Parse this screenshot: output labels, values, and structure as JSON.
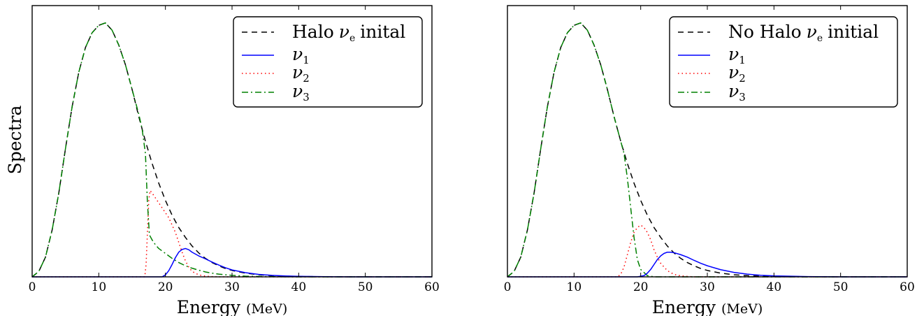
{
  "ylabel": "Spectra",
  "xlabel": {
    "main": "Energy",
    "unit": "(MeV)"
  },
  "legend_symbols": {
    "nu": "ν",
    "e": "e",
    "s1": "1",
    "s2": "2",
    "s3": "3"
  },
  "colors": {
    "initial": "#000000",
    "nu1": "#0000ff",
    "nu2": "#ff0000",
    "nu3": "#008000",
    "frame": "#000000"
  },
  "chart_data": [
    {
      "type": "line",
      "xlabel": "Energy (MeV)",
      "ylabel": "Spectra",
      "xlim": [
        0,
        60
      ],
      "ylim": [
        0,
        1.1
      ],
      "xticks": [
        "0",
        "10",
        "20",
        "30",
        "40",
        "50",
        "60"
      ],
      "yticks": [],
      "grid": false,
      "legend_position": "top-right",
      "legend_text": "Halo",
      "legend_tail": "inital",
      "series": [
        {
          "key": "initial",
          "style": "dashed",
          "color": "#000000",
          "x": [
            0,
            1,
            2,
            3,
            4,
            5,
            6,
            7,
            8,
            9,
            10,
            11,
            12,
            13,
            14,
            15,
            16,
            17,
            18,
            19,
            20,
            21,
            22,
            23,
            24,
            25,
            26,
            27,
            28,
            29,
            30,
            32,
            34,
            36,
            38,
            40,
            45,
            50,
            55,
            60
          ],
          "y": [
            0,
            0.022,
            0.08,
            0.19,
            0.34,
            0.52,
            0.69,
            0.83,
            0.93,
            0.99,
            1.02,
            1.03,
            1.0,
            0.94,
            0.86,
            0.76,
            0.65,
            0.55,
            0.46,
            0.38,
            0.31,
            0.25,
            0.2,
            0.16,
            0.125,
            0.097,
            0.075,
            0.058,
            0.045,
            0.034,
            0.026,
            0.015,
            0.0085,
            0.0048,
            0.0027,
            0.0015,
            0.0003,
            0,
            0,
            0
          ]
        },
        {
          "key": "nu1",
          "style": "solid",
          "color": "#0000ff",
          "x": [
            0,
            19.5,
            20,
            20.5,
            21,
            21.5,
            22,
            22.5,
            23,
            23.5,
            24,
            25,
            26,
            27,
            28,
            29,
            30,
            32,
            34,
            36,
            38,
            40,
            45,
            50,
            60
          ],
          "y": [
            0,
            0,
            0.008,
            0.025,
            0.05,
            0.078,
            0.1,
            0.111,
            0.115,
            0.11,
            0.1,
            0.085,
            0.073,
            0.06,
            0.048,
            0.037,
            0.028,
            0.017,
            0.01,
            0.006,
            0.0035,
            0.002,
            0.0004,
            0,
            0
          ]
        },
        {
          "key": "nu2",
          "style": "dotted",
          "color": "#ff0000",
          "x": [
            0,
            16.9,
            17.1,
            17.3,
            17.5,
            17.7,
            18,
            18.5,
            19,
            19.5,
            20,
            20.5,
            21,
            21.5,
            22,
            22.5,
            23,
            23.5,
            24,
            25,
            26,
            27,
            28,
            30,
            60
          ],
          "y": [
            0,
            0,
            0.05,
            0.18,
            0.31,
            0.35,
            0.34,
            0.32,
            0.3,
            0.28,
            0.26,
            0.24,
            0.21,
            0.18,
            0.14,
            0.1,
            0.065,
            0.04,
            0.022,
            0.008,
            0.003,
            0.001,
            0,
            0,
            0
          ]
        },
        {
          "key": "nu3",
          "style": "dashdot",
          "color": "#008000",
          "x": [
            0,
            1,
            2,
            3,
            4,
            5,
            6,
            7,
            8,
            9,
            10,
            11,
            12,
            13,
            14,
            15,
            16,
            16.5,
            17,
            17.3,
            17.6,
            18,
            18.5,
            19,
            20,
            21,
            22,
            23,
            24,
            25,
            26,
            27,
            28,
            30,
            32,
            35,
            40,
            60
          ],
          "y": [
            0,
            0.022,
            0.08,
            0.19,
            0.34,
            0.52,
            0.69,
            0.83,
            0.93,
            0.99,
            1.02,
            1.03,
            1.0,
            0.94,
            0.86,
            0.76,
            0.66,
            0.6,
            0.5,
            0.3,
            0.17,
            0.15,
            0.13,
            0.115,
            0.095,
            0.075,
            0.058,
            0.045,
            0.035,
            0.027,
            0.02,
            0.015,
            0.011,
            0.006,
            0.003,
            0.001,
            0,
            0
          ]
        }
      ]
    },
    {
      "type": "line",
      "xlabel": "Energy (MeV)",
      "ylabel": "",
      "xlim": [
        0,
        60
      ],
      "ylim": [
        0,
        1.1
      ],
      "xticks": [
        "0",
        "10",
        "20",
        "30",
        "40",
        "50",
        "60"
      ],
      "yticks": [],
      "grid": false,
      "legend_position": "top-right",
      "legend_text": "No Halo",
      "legend_tail": "initial",
      "series": [
        {
          "key": "initial",
          "style": "dashed",
          "color": "#000000",
          "x": [
            0,
            1,
            2,
            3,
            4,
            5,
            6,
            7,
            8,
            9,
            10,
            11,
            12,
            13,
            14,
            15,
            16,
            17,
            18,
            19,
            20,
            21,
            22,
            23,
            24,
            25,
            26,
            27,
            28,
            29,
            30,
            32,
            34,
            36,
            38,
            40,
            45,
            50,
            55,
            60
          ],
          "y": [
            0,
            0.022,
            0.08,
            0.19,
            0.34,
            0.52,
            0.69,
            0.83,
            0.93,
            0.99,
            1.02,
            1.03,
            1.0,
            0.94,
            0.86,
            0.76,
            0.65,
            0.55,
            0.46,
            0.38,
            0.31,
            0.25,
            0.2,
            0.16,
            0.125,
            0.097,
            0.075,
            0.058,
            0.045,
            0.034,
            0.026,
            0.015,
            0.0085,
            0.0048,
            0.0027,
            0.0015,
            0.0003,
            0,
            0,
            0
          ]
        },
        {
          "key": "nu1",
          "style": "solid",
          "color": "#0000ff",
          "x": [
            0,
            19.5,
            20.5,
            21,
            21.5,
            22,
            22.5,
            23,
            23.5,
            24,
            24.5,
            25,
            26,
            27,
            28,
            29,
            30,
            32,
            34,
            36,
            38,
            40,
            45,
            50,
            60
          ],
          "y": [
            0,
            0,
            0.005,
            0.015,
            0.03,
            0.05,
            0.07,
            0.085,
            0.095,
            0.1,
            0.1,
            0.098,
            0.09,
            0.08,
            0.067,
            0.055,
            0.045,
            0.029,
            0.018,
            0.011,
            0.0065,
            0.004,
            0.001,
            0,
            0
          ]
        },
        {
          "key": "nu2",
          "style": "dotted",
          "color": "#ff0000",
          "x": [
            0,
            16.5,
            17,
            17.5,
            18,
            18.5,
            19,
            19.5,
            20,
            20.5,
            21,
            21.5,
            22,
            22.5,
            23,
            24,
            25,
            26,
            28,
            60
          ],
          "y": [
            0,
            0,
            0.01,
            0.04,
            0.09,
            0.14,
            0.18,
            0.2,
            0.21,
            0.2,
            0.18,
            0.15,
            0.11,
            0.08,
            0.055,
            0.025,
            0.01,
            0.004,
            0,
            0
          ]
        },
        {
          "key": "nu3",
          "style": "dashdot",
          "color": "#008000",
          "x": [
            0,
            1,
            2,
            3,
            4,
            5,
            6,
            7,
            8,
            9,
            10,
            11,
            12,
            13,
            14,
            15,
            16,
            17,
            17.5,
            18,
            18.5,
            19,
            19.5,
            20,
            21,
            22,
            60
          ],
          "y": [
            0,
            0.022,
            0.08,
            0.19,
            0.34,
            0.52,
            0.69,
            0.83,
            0.93,
            0.99,
            1.02,
            1.03,
            1.0,
            0.94,
            0.86,
            0.76,
            0.65,
            0.55,
            0.5,
            0.4,
            0.28,
            0.16,
            0.07,
            0.03,
            0.005,
            0,
            0
          ]
        }
      ]
    }
  ]
}
